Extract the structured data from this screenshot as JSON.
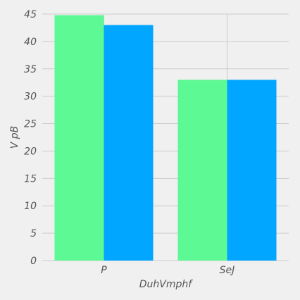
{
  "chart_data": {
    "type": "bar",
    "title": "",
    "xlabel": "DuhVmphf",
    "ylabel": "V pB",
    "categories": [
      "P",
      "SeJ"
    ],
    "series": [
      {
        "color": "#5cf994",
        "values": [
          44.8,
          33.0
        ]
      },
      {
        "color": "#00a6ff",
        "values": [
          43.0,
          33.0
        ]
      }
    ],
    "ylim": [
      0,
      45
    ],
    "yticks": [
      0,
      5,
      10,
      15,
      20,
      25,
      30,
      35,
      40,
      45
    ],
    "grid": true,
    "legend": "none"
  },
  "colors": {
    "background": "#f0f0f0",
    "grid": "#cbcbcb",
    "text": "#555555"
  }
}
